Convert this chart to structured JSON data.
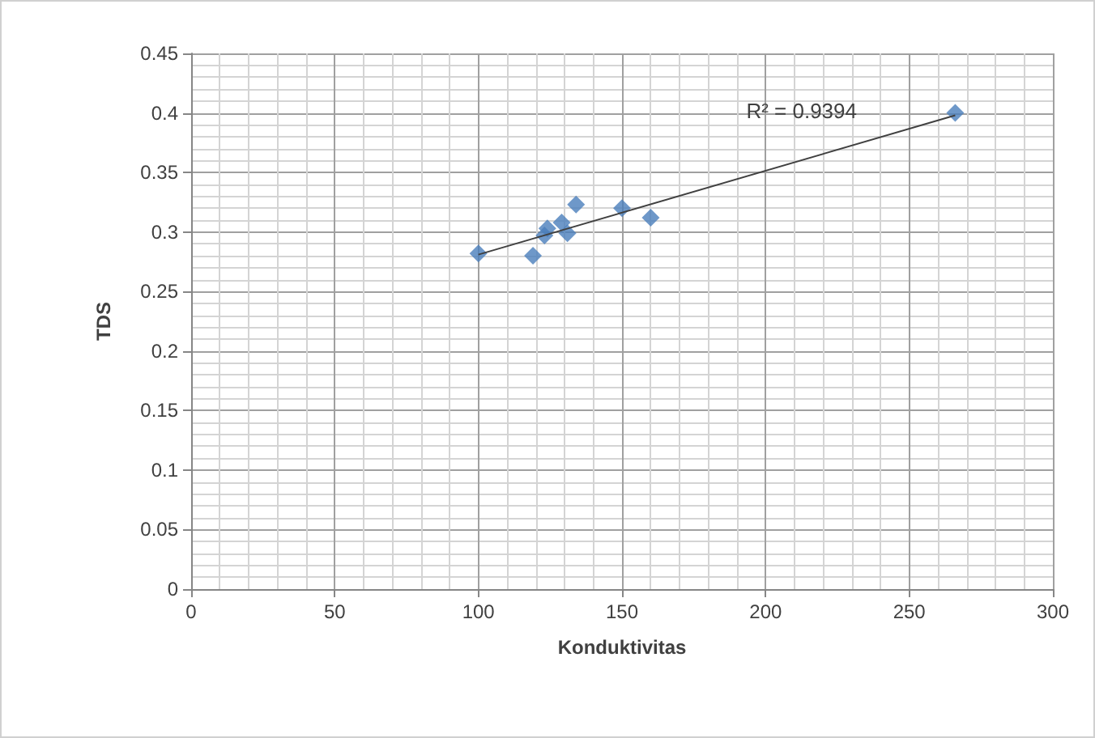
{
  "chart_data": {
    "type": "scatter",
    "xlabel": "Konduktivitas",
    "ylabel": "TDS",
    "x": [
      100,
      119,
      123,
      124,
      129,
      131,
      134,
      150,
      160,
      266
    ],
    "series": [
      {
        "color": "#4a7ebb",
        "marker": "diamond",
        "values": [
          0.282,
          0.28,
          0.297,
          0.303,
          0.308,
          0.299,
          0.323,
          0.32,
          0.312,
          0.4
        ]
      },
      {
        "type": "line",
        "color": "#404040",
        "marker": "none",
        "x": [
          100,
          266
        ],
        "values": [
          0.281,
          0.398
        ]
      }
    ],
    "xlim": [
      0,
      300
    ],
    "xticks": [
      0,
      50,
      100,
      150,
      200,
      250,
      300
    ],
    "ylim": [
      0,
      0.45
    ],
    "yticks": [
      0,
      0.05,
      0.1,
      0.15,
      0.2,
      0.25,
      0.3,
      0.35,
      0.4,
      0.45
    ],
    "grid": true,
    "annotations": [
      "R² = 0.9394"
    ]
  }
}
